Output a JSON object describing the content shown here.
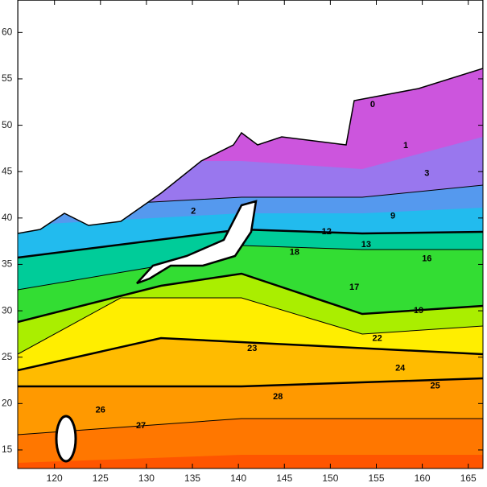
{
  "map": {
    "xlim": [
      116,
      166.6
    ],
    "ylim": [
      13,
      63.5
    ],
    "xticks": [
      120,
      125,
      130,
      135,
      140,
      145,
      150,
      155,
      160,
      165
    ],
    "yticks": [
      15,
      20,
      25,
      30,
      35,
      40,
      45,
      50,
      55,
      60
    ],
    "contour_labels": [
      {
        "text": "0",
        "lon": 154.6,
        "lat": 52.2
      },
      {
        "text": "1",
        "lon": 158.2,
        "lat": 47.8
      },
      {
        "text": "2",
        "lon": 135.1,
        "lat": 40.7
      },
      {
        "text": "3",
        "lon": 160.5,
        "lat": 44.8
      },
      {
        "text": "9",
        "lon": 156.8,
        "lat": 40.2
      },
      {
        "text": "12",
        "lon": 149.6,
        "lat": 38.5
      },
      {
        "text": "13",
        "lon": 153.9,
        "lat": 37.1
      },
      {
        "text": "16",
        "lon": 160.5,
        "lat": 35.6
      },
      {
        "text": "18",
        "lon": 146.1,
        "lat": 36.3
      },
      {
        "text": "17",
        "lon": 152.6,
        "lat": 32.5
      },
      {
        "text": "19",
        "lon": 159.6,
        "lat": 30.0
      },
      {
        "text": "22",
        "lon": 155.1,
        "lat": 27.0
      },
      {
        "text": "23",
        "lon": 141.5,
        "lat": 25.9
      },
      {
        "text": "24",
        "lon": 157.6,
        "lat": 23.8
      },
      {
        "text": "25",
        "lon": 161.4,
        "lat": 21.9
      },
      {
        "text": "28",
        "lon": 144.3,
        "lat": 20.7
      },
      {
        "text": "26",
        "lon": 125.0,
        "lat": 19.3
      },
      {
        "text": "27",
        "lon": 129.4,
        "lat": 17.6
      }
    ]
  }
}
